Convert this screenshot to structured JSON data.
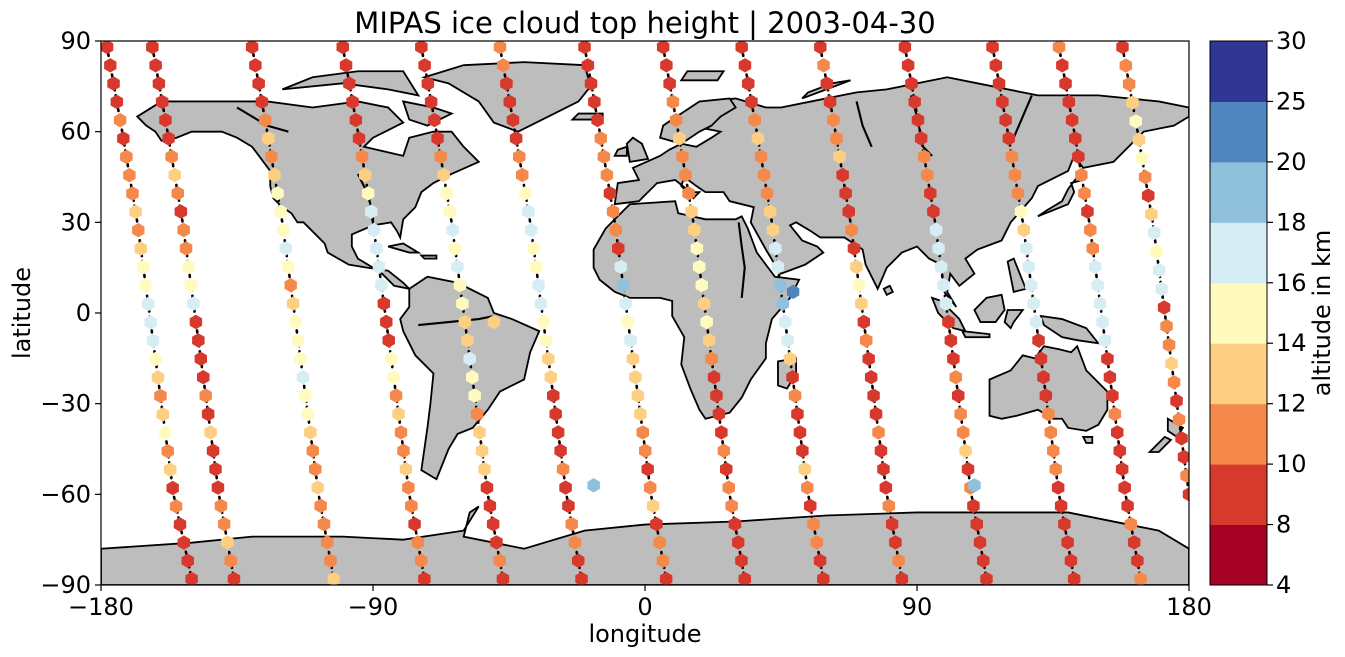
{
  "chart_data": {
    "type": "scatter",
    "title": "MIPAS ice cloud top height | 2003-04-30",
    "xlabel": "longitude",
    "ylabel": "latitude",
    "xlim": [
      -180,
      180
    ],
    "ylim": [
      -90,
      90
    ],
    "xticks": [
      -180,
      -90,
      0,
      90,
      180
    ],
    "yticks": [
      -90,
      -60,
      -30,
      0,
      30,
      60,
      90
    ],
    "colorbar": {
      "label": "altitude in km",
      "bounds": [
        4,
        8,
        10,
        12,
        14,
        16,
        18,
        20,
        25,
        30
      ],
      "colors": [
        "#a50026",
        "#d73027",
        "#f46d43",
        "#fdae61",
        "#fee090",
        "#e0f3f8",
        "#abd9e9",
        "#74add1",
        "#4575b4"
      ],
      "display_colors": [
        "#a50026",
        "#d73a2c",
        "#f5884b",
        "#fccf82",
        "#fffbbf",
        "#d6edf3",
        "#8fc1dd",
        "#5086bd",
        "#313695"
      ]
    },
    "orbit_tracks": [
      {
        "nodes": [
          [
            -178,
            88
          ],
          [
            -173,
            60
          ],
          [
            -168,
            30
          ],
          [
            -164,
            0
          ],
          [
            -160,
            -30
          ],
          [
            -156,
            -60
          ],
          [
            -150,
            -88
          ]
        ],
        "cloud_top_km": [
          9,
          9,
          8,
          9,
          11,
          8,
          10,
          11,
          11,
          13,
          11,
          12,
          15,
          15,
          17,
          17,
          16,
          15,
          12,
          10,
          12,
          14,
          11,
          12,
          9,
          10,
          9,
          8,
          8,
          8
        ]
      },
      {
        "nodes": [
          [
            -163,
            88
          ],
          [
            -158,
            60
          ],
          [
            -153,
            30
          ],
          [
            -149,
            0
          ],
          [
            -145,
            -30
          ],
          [
            -141,
            -60
          ],
          [
            -136,
            -88
          ]
        ],
        "cloud_top_km": [
          8,
          8,
          9,
          9,
          8,
          8,
          10,
          12,
          10,
          8,
          11,
          11,
          14,
          15,
          16,
          8,
          9,
          8,
          9,
          10,
          9,
          12,
          8,
          8,
          9,
          10,
          11,
          12,
          10,
          8
        ]
      },
      {
        "nodes": [
          [
            -130,
            88
          ],
          [
            -125,
            60
          ],
          [
            -120,
            30
          ],
          [
            -116,
            0
          ],
          [
            -112,
            -30
          ],
          [
            -108,
            -60
          ],
          [
            -103,
            -88
          ]
        ],
        "cloud_top_km": [
          8,
          8,
          8,
          9,
          10,
          12,
          11,
          12,
          15,
          14,
          15,
          16,
          15,
          11,
          13,
          15,
          14,
          15,
          16,
          15,
          14,
          13,
          11,
          11,
          12,
          11,
          10,
          11,
          10,
          12
        ]
      },
      {
        "nodes": [
          [
            -100,
            88
          ],
          [
            -95,
            60
          ],
          [
            -90,
            30
          ],
          [
            -86,
            0
          ],
          [
            -82,
            -30
          ],
          [
            -78,
            -60
          ],
          [
            -73,
            -88
          ]
        ],
        "cloud_top_km": [
          8,
          8,
          8,
          8,
          8,
          9,
          10,
          12,
          15,
          17,
          17,
          17,
          16,
          17,
          8,
          9,
          9,
          15,
          15,
          11,
          12,
          10,
          11,
          12,
          10,
          11,
          9,
          10,
          11,
          9
        ]
      },
      {
        "nodes": [
          [
            -74,
            88
          ],
          [
            -69,
            60
          ],
          [
            -64,
            30
          ],
          [
            -60,
            0
          ],
          [
            -56,
            -30
          ],
          [
            -52,
            -60
          ],
          [
            -47,
            -88
          ]
        ],
        "cloud_top_km": [
          9,
          8,
          8,
          8,
          8,
          9,
          10,
          12,
          15,
          15,
          16,
          15,
          16,
          15,
          15,
          13,
          12,
          16,
          15,
          14,
          11,
          12,
          13,
          12,
          9,
          8,
          9,
          9,
          10,
          9
        ]
      },
      {
        "nodes": [
          [
            -48,
            88
          ],
          [
            -43,
            60
          ],
          [
            -38,
            30
          ],
          [
            -34,
            0
          ],
          [
            -30,
            -30
          ],
          [
            -26,
            -60
          ],
          [
            -21,
            -88
          ]
        ],
        "cloud_top_km": [
          11,
          10,
          8,
          9,
          8,
          9,
          10,
          11,
          15,
          16,
          16,
          15,
          15,
          17,
          16,
          14,
          15,
          13,
          12,
          9,
          8,
          8,
          9,
          10,
          8,
          9,
          11,
          10,
          9,
          8
        ]
      },
      {
        "nodes": [
          [
            -20,
            88
          ],
          [
            -15,
            60
          ],
          [
            -10,
            30
          ],
          [
            -6,
            0
          ],
          [
            -2,
            -30
          ],
          [
            2,
            -60
          ],
          [
            7,
            -88
          ]
        ],
        "cloud_top_km": [
          8,
          9,
          8,
          8,
          9,
          11,
          10,
          10,
          9,
          11,
          10,
          8,
          17,
          18,
          16,
          15,
          16,
          13,
          13,
          12,
          12,
          11,
          10,
          9,
          10,
          12,
          8,
          10,
          11,
          9
        ]
      },
      {
        "nodes": [
          [
            6,
            88
          ],
          [
            11,
            60
          ],
          [
            16,
            30
          ],
          [
            20,
            0
          ],
          [
            24,
            -30
          ],
          [
            28,
            -60
          ],
          [
            33,
            -88
          ]
        ],
        "cloud_top_km": [
          8,
          8,
          9,
          11,
          10,
          12,
          11,
          11,
          10,
          12,
          12,
          15,
          15,
          15,
          13,
          14,
          13,
          10,
          9,
          9,
          8,
          8,
          10,
          9,
          10,
          11,
          9,
          8,
          8,
          9
        ]
      },
      {
        "nodes": [
          [
            32,
            88
          ],
          [
            37,
            60
          ],
          [
            42,
            30
          ],
          [
            46,
            0
          ],
          [
            50,
            -30
          ],
          [
            54,
            -60
          ],
          [
            59,
            -88
          ]
        ],
        "cloud_top_km": [
          8,
          9,
          8,
          8,
          10,
          12,
          10,
          11,
          10,
          12,
          12,
          16,
          17,
          18,
          19,
          17,
          16,
          12,
          8,
          10,
          9,
          8,
          9,
          13,
          10,
          9,
          11,
          10,
          8,
          8
        ]
      },
      {
        "nodes": [
          [
            58,
            88
          ],
          [
            63,
            60
          ],
          [
            68,
            30
          ],
          [
            72,
            0
          ],
          [
            76,
            -30
          ],
          [
            80,
            -60
          ],
          [
            85,
            -88
          ]
        ],
        "cloud_top_km": [
          8,
          10,
          8,
          9,
          11,
          10,
          12,
          8,
          8,
          9,
          10,
          9,
          12,
          14,
          12,
          9,
          10,
          8,
          9,
          8,
          9,
          10,
          9,
          8,
          9,
          10,
          9,
          8,
          10,
          8
        ]
      },
      {
        "nodes": [
          [
            86,
            88
          ],
          [
            91,
            60
          ],
          [
            96,
            30
          ],
          [
            100,
            0
          ],
          [
            104,
            -30
          ],
          [
            108,
            -60
          ],
          [
            113,
            -88
          ]
        ],
        "cloud_top_km": [
          8,
          8,
          9,
          8,
          9,
          8,
          11,
          11,
          8,
          8,
          17,
          17,
          16,
          17,
          16,
          8,
          8,
          9,
          10,
          9,
          10,
          11,
          12,
          8,
          10,
          9,
          8,
          9,
          8,
          9
        ]
      },
      {
        "nodes": [
          [
            115,
            88
          ],
          [
            120,
            60
          ],
          [
            125,
            30
          ],
          [
            129,
            0
          ],
          [
            133,
            -30
          ],
          [
            137,
            -60
          ],
          [
            142,
            -88
          ]
        ],
        "cloud_top_km": [
          8,
          9,
          8,
          8,
          8,
          9,
          11,
          10,
          11,
          14,
          13,
          16,
          16,
          17,
          16,
          17,
          8,
          9,
          8,
          9,
          10,
          10,
          11,
          10,
          9,
          8,
          9,
          8,
          8,
          9
        ]
      },
      {
        "nodes": [
          [
            137,
            88
          ],
          [
            142,
            60
          ],
          [
            147,
            30
          ],
          [
            151,
            0
          ],
          [
            155,
            -30
          ],
          [
            159,
            -60
          ],
          [
            164,
            -88
          ]
        ],
        "cloud_top_km": [
          10,
          9,
          8,
          8,
          8,
          9,
          8,
          11,
          10,
          9,
          10,
          11,
          17,
          16,
          17,
          16,
          16,
          8,
          9,
          9,
          10,
          8,
          9,
          8,
          9,
          8,
          10,
          9,
          8,
          10
        ]
      },
      {
        "nodes": [
          [
            158,
            88
          ],
          [
            163,
            60
          ],
          [
            168,
            30
          ],
          [
            172,
            0
          ],
          [
            176,
            -30
          ],
          [
            180,
            -60
          ]
        ],
        "cloud_top_km": [
          8,
          10,
          11,
          12,
          14,
          13,
          15,
          10,
          8,
          12,
          16,
          15,
          16,
          17,
          9,
          11,
          10,
          12,
          10,
          9,
          11,
          9,
          8,
          10,
          9
        ]
      }
    ],
    "isolated_points": [
      {
        "lon": -17,
        "lat": -57,
        "cloud_top_km": 19
      },
      {
        "lon": 109,
        "lat": -57,
        "cloud_top_km": 19
      },
      {
        "lon": 49,
        "lat": 7,
        "cloud_top_km": 20
      },
      {
        "lon": -50,
        "lat": -3,
        "cloud_top_km": 12
      }
    ]
  }
}
